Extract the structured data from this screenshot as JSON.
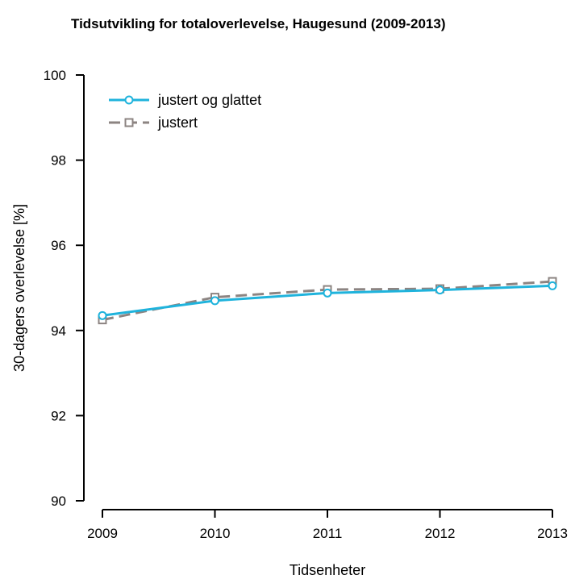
{
  "chart_data": {
    "type": "line",
    "title": "Tidsutvikling for totaloverlevelse, Haugesund (2009-2013)",
    "xlabel": "Tidsenheter",
    "ylabel": "30-dagers overlevelse [%]",
    "x": [
      2009,
      2010,
      2011,
      2012,
      2013
    ],
    "xlim": [
      2009,
      2013
    ],
    "ylim": [
      90,
      100
    ],
    "yticks": [
      90,
      92,
      94,
      96,
      98,
      100
    ],
    "grid": false,
    "legend_position": "top-left",
    "series": [
      {
        "name": "justert og glattet",
        "values": [
          94.35,
          94.7,
          94.88,
          94.95,
          95.05
        ],
        "color": "#1fb3dc",
        "line_style": "solid",
        "marker": "circle"
      },
      {
        "name": "justert",
        "values": [
          94.25,
          94.78,
          94.96,
          94.98,
          95.15
        ],
        "color": "#8c8482",
        "line_style": "dashed",
        "marker": "square"
      }
    ]
  }
}
